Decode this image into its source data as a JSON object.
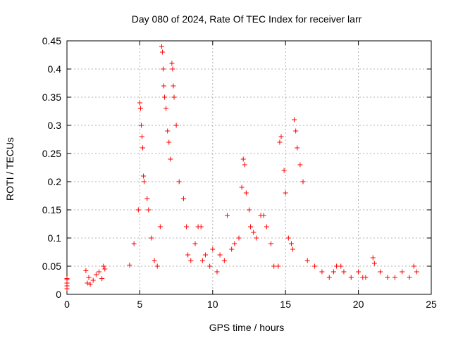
{
  "chart_data": {
    "type": "scatter",
    "title": "Day 080 of 2024, Rate Of TEC Index for receiver larr",
    "xlabel": "GPS time / hours",
    "ylabel": "ROTI / TECUs",
    "xlim": [
      0,
      25
    ],
    "ylim": [
      0,
      0.45
    ],
    "xticks": [
      "0",
      "5",
      "10",
      "15",
      "20",
      "25"
    ],
    "yticks": [
      "0",
      "0.05",
      "0.1",
      "0.15",
      "0.2",
      "0.25",
      "0.3",
      "0.35",
      "0.4",
      "0.45"
    ],
    "grid": true,
    "marker": "+",
    "color": "#ff0000",
    "series": [
      {
        "x": [
          0.0,
          0.0,
          0.0,
          0.0,
          0.0,
          1.3,
          1.4,
          1.5,
          1.6,
          1.8,
          2.0,
          2.2,
          2.4,
          2.5,
          2.6,
          4.3,
          4.6,
          4.9,
          5.0,
          5.05,
          5.1,
          5.15,
          5.2,
          5.25,
          5.3,
          5.5,
          5.6,
          5.8,
          6.0,
          6.2,
          6.4,
          6.5,
          6.55,
          6.6,
          6.65,
          6.7,
          6.8,
          6.9,
          7.0,
          7.1,
          7.2,
          7.25,
          7.3,
          7.35,
          7.5,
          7.7,
          8.0,
          8.2,
          8.3,
          8.5,
          8.8,
          9.0,
          9.2,
          9.3,
          9.5,
          9.8,
          10.0,
          10.3,
          10.5,
          10.8,
          11.0,
          11.3,
          11.5,
          11.8,
          12.0,
          12.1,
          12.2,
          12.3,
          12.5,
          12.6,
          12.8,
          13.0,
          13.3,
          13.5,
          13.7,
          14.0,
          14.2,
          14.5,
          14.6,
          14.7,
          14.9,
          15.0,
          15.2,
          15.4,
          15.5,
          15.6,
          15.7,
          15.8,
          16.0,
          16.2,
          16.5,
          17.0,
          17.5,
          18.0,
          18.3,
          18.5,
          18.8,
          19.0,
          19.5,
          20.0,
          20.3,
          20.5,
          21.0,
          21.1,
          21.5,
          22.0,
          22.5,
          23.0,
          23.5,
          23.8,
          24.0
        ],
        "y": [
          0.026,
          0.02,
          0.015,
          0.01,
          0.028,
          0.042,
          0.02,
          0.03,
          0.018,
          0.025,
          0.035,
          0.04,
          0.028,
          0.05,
          0.045,
          0.052,
          0.09,
          0.15,
          0.34,
          0.33,
          0.3,
          0.28,
          0.26,
          0.21,
          0.2,
          0.17,
          0.15,
          0.1,
          0.06,
          0.05,
          0.12,
          0.44,
          0.43,
          0.4,
          0.37,
          0.35,
          0.33,
          0.29,
          0.27,
          0.24,
          0.41,
          0.4,
          0.37,
          0.35,
          0.3,
          0.2,
          0.17,
          0.12,
          0.07,
          0.06,
          0.09,
          0.12,
          0.12,
          0.06,
          0.07,
          0.05,
          0.08,
          0.04,
          0.07,
          0.06,
          0.14,
          0.08,
          0.09,
          0.1,
          0.19,
          0.24,
          0.23,
          0.18,
          0.15,
          0.12,
          0.11,
          0.1,
          0.14,
          0.14,
          0.12,
          0.09,
          0.05,
          0.05,
          0.27,
          0.28,
          0.22,
          0.18,
          0.1,
          0.09,
          0.08,
          0.31,
          0.29,
          0.26,
          0.23,
          0.2,
          0.06,
          0.05,
          0.04,
          0.03,
          0.04,
          0.05,
          0.05,
          0.04,
          0.03,
          0.04,
          0.03,
          0.03,
          0.065,
          0.055,
          0.04,
          0.03,
          0.03,
          0.04,
          0.03,
          0.05,
          0.04
        ]
      }
    ]
  }
}
